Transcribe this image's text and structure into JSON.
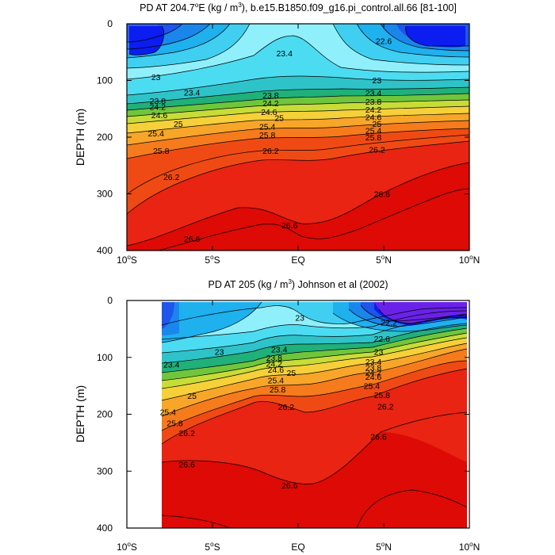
{
  "chart_data": [
    {
      "type": "contour",
      "title_pre": "PD AT 204.7",
      "title_sup": "o",
      "title_mid": "E (kg / m",
      "title_sup2": "3",
      "title_post": "), b.e15.B1850.f09_g16.pi_control.all.66 [81-100]",
      "ylabel": "DEPTH (m)",
      "xlim": [
        -10,
        10
      ],
      "ylim": [
        0,
        400
      ],
      "x_ticks": [
        {
          "pre": "10",
          "sup": "o",
          "post": "S"
        },
        {
          "pre": "5",
          "sup": "o",
          "post": "S"
        },
        {
          "pre": "EQ",
          "sup": "",
          "post": ""
        },
        {
          "pre": "5",
          "sup": "o",
          "post": "N"
        },
        {
          "pre": "10",
          "sup": "o",
          "post": "N"
        }
      ],
      "y_ticks": [
        "0",
        "100",
        "200",
        "300",
        "400"
      ],
      "contour_levels": [
        22.2,
        22.6,
        23,
        23.4,
        23.8,
        24.2,
        24.6,
        25,
        25.4,
        25.8,
        26.2,
        26.6
      ],
      "contour_labels": [
        {
          "text": "23.4",
          "x": -0.8,
          "y": 52
        },
        {
          "text": "22.6",
          "x": 5.0,
          "y": 30
        },
        {
          "text": "23",
          "x": -8.3,
          "y": 94
        },
        {
          "text": "23.4",
          "x": -6.2,
          "y": 121
        },
        {
          "text": "23.8",
          "x": -8.2,
          "y": 136
        },
        {
          "text": "24.2",
          "x": -8.2,
          "y": 146
        },
        {
          "text": "24.6",
          "x": -8.1,
          "y": 161
        },
        {
          "text": "25",
          "x": -7.0,
          "y": 176
        },
        {
          "text": "25.4",
          "x": -8.3,
          "y": 193
        },
        {
          "text": "25.8",
          "x": -8.0,
          "y": 224
        },
        {
          "text": "26.2",
          "x": -7.4,
          "y": 270
        },
        {
          "text": "23.8",
          "x": -1.6,
          "y": 126
        },
        {
          "text": "24.2",
          "x": -1.6,
          "y": 140
        },
        {
          "text": "24.6",
          "x": -1.7,
          "y": 155
        },
        {
          "text": "25",
          "x": -1.1,
          "y": 166
        },
        {
          "text": "25.4",
          "x": -1.8,
          "y": 181
        },
        {
          "text": "25.8",
          "x": -1.8,
          "y": 196
        },
        {
          "text": "26.2",
          "x": -1.6,
          "y": 224
        },
        {
          "text": "23",
          "x": 4.6,
          "y": 99
        },
        {
          "text": "23.4",
          "x": 4.4,
          "y": 122
        },
        {
          "text": "23.8",
          "x": 4.4,
          "y": 137
        },
        {
          "text": "24.2",
          "x": 4.4,
          "y": 151
        },
        {
          "text": "24.6",
          "x": 4.4,
          "y": 164
        },
        {
          "text": "25",
          "x": 4.6,
          "y": 176
        },
        {
          "text": "25.4",
          "x": 4.4,
          "y": 188
        },
        {
          "text": "25.8",
          "x": 4.4,
          "y": 200
        },
        {
          "text": "26.2",
          "x": 4.6,
          "y": 222
        },
        {
          "text": "26.6",
          "x": 4.9,
          "y": 300
        },
        {
          "text": "26.6",
          "x": -6.2,
          "y": 379
        },
        {
          "text": "26.6",
          "x": -0.5,
          "y": 355
        }
      ]
    },
    {
      "type": "contour",
      "title_pre": "PD AT 205 (kg / m",
      "title_sup": "3",
      "title_post": ") Johnson et al (2002)",
      "ylabel": "DEPTH (m)",
      "xlim": [
        -10,
        10
      ],
      "ylim": [
        0,
        400
      ],
      "data_x_range": [
        -8,
        9.6
      ],
      "x_ticks": [
        {
          "pre": "10",
          "sup": "o",
          "post": "S"
        },
        {
          "pre": "5",
          "sup": "o",
          "post": "S"
        },
        {
          "pre": "EQ",
          "sup": "",
          "post": ""
        },
        {
          "pre": "5",
          "sup": "o",
          "post": "N"
        },
        {
          "pre": "10",
          "sup": "o",
          "post": "N"
        }
      ],
      "y_ticks": [
        "0",
        "100",
        "200",
        "300",
        "400"
      ],
      "contour_levels": [
        22.2,
        22.6,
        23,
        23.4,
        23.8,
        24.2,
        24.6,
        25,
        25.4,
        25.8,
        26.2,
        26.6
      ],
      "contour_labels": [
        {
          "text": "23",
          "x": 0.1,
          "y": 30
        },
        {
          "text": "22.2",
          "x": 5.3,
          "y": 38
        },
        {
          "text": "22.6",
          "x": 4.9,
          "y": 67
        },
        {
          "text": "23",
          "x": -4.6,
          "y": 90
        },
        {
          "text": "23",
          "x": 4.7,
          "y": 90
        },
        {
          "text": "23.4",
          "x": -1.1,
          "y": 86
        },
        {
          "text": "23.4",
          "x": -7.4,
          "y": 112
        },
        {
          "text": "23.4",
          "x": 4.4,
          "y": 107
        },
        {
          "text": "23.8",
          "x": -1.4,
          "y": 100
        },
        {
          "text": "23.8",
          "x": 4.4,
          "y": 118
        },
        {
          "text": "24.2",
          "x": -1.4,
          "y": 111
        },
        {
          "text": "24.2",
          "x": 4.4,
          "y": 126
        },
        {
          "text": "24.6",
          "x": -1.3,
          "y": 121
        },
        {
          "text": "24.6",
          "x": 4.4,
          "y": 134
        },
        {
          "text": "25",
          "x": -0.4,
          "y": 127
        },
        {
          "text": "25",
          "x": -6.2,
          "y": 167
        },
        {
          "text": "25.4",
          "x": -1.3,
          "y": 140
        },
        {
          "text": "25.4",
          "x": 4.3,
          "y": 150
        },
        {
          "text": "25.4",
          "x": -7.6,
          "y": 196
        },
        {
          "text": "25.8",
          "x": -1.2,
          "y": 156
        },
        {
          "text": "25.8",
          "x": 4.9,
          "y": 166
        },
        {
          "text": "25.8",
          "x": -7.2,
          "y": 215
        },
        {
          "text": "26.2",
          "x": -0.7,
          "y": 187
        },
        {
          "text": "26.2",
          "x": 5.1,
          "y": 186
        },
        {
          "text": "26.2",
          "x": -6.5,
          "y": 233
        },
        {
          "text": "26.6",
          "x": 4.7,
          "y": 239
        },
        {
          "text": "26.6",
          "x": -6.5,
          "y": 288
        },
        {
          "text": "26.6",
          "x": -0.5,
          "y": 325
        }
      ]
    }
  ]
}
